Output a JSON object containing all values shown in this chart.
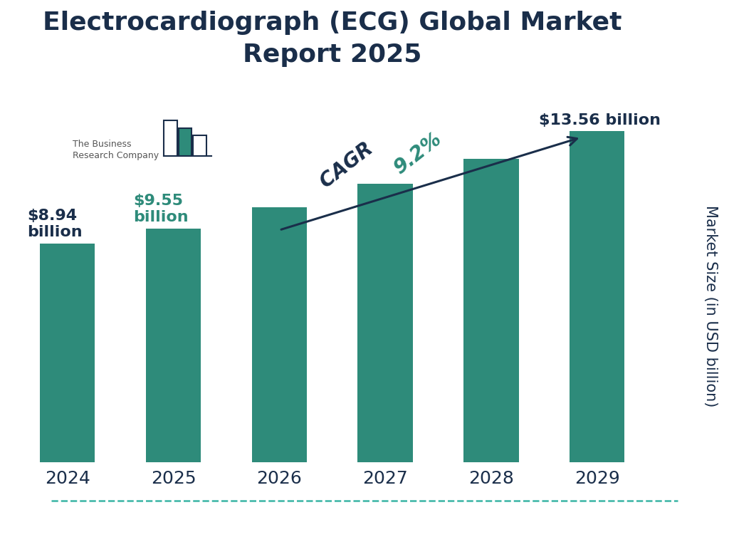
{
  "title": "Electrocardiograph (ECG) Global Market\nReport 2025",
  "years": [
    "2024",
    "2025",
    "2026",
    "2027",
    "2028",
    "2029"
  ],
  "values": [
    8.94,
    9.55,
    10.43,
    11.39,
    12.43,
    13.56
  ],
  "bar_color": "#2e8b7a",
  "background_color": "#ffffff",
  "title_color": "#1a2e4a",
  "annotation_2024_text": "$8.94\nbillion",
  "annotation_2024_color": "#1a2e4a",
  "annotation_2025_text": "$9.55\nbillion",
  "annotation_2025_color": "#2e8b7a",
  "annotation_2029_text": "$13.56 billion",
  "annotation_2029_color": "#1a2e4a",
  "ylabel": "Market Size (in USD billion)",
  "ylabel_color": "#1a2e4a",
  "cagr_label": "CAGR ",
  "cagr_pct": "9.2%",
  "cagr_color": "#1a2e4a",
  "cagr_pct_color": "#2e8b7a",
  "arrow_color": "#1a2e4a",
  "dashed_line_color": "#3ab5a5",
  "logo_text": "The Business\nResearch Company",
  "logo_text_color": "#555555",
  "logo_bar_color": "#2e8b7a",
  "logo_outline_color": "#1a2e4a",
  "title_fontsize": 26,
  "tick_fontsize": 18,
  "annotation_fontsize": 16,
  "ylabel_fontsize": 15,
  "cagr_fontsize": 20,
  "bar_width": 0.52,
  "ylim": [
    0,
    15.5
  ]
}
